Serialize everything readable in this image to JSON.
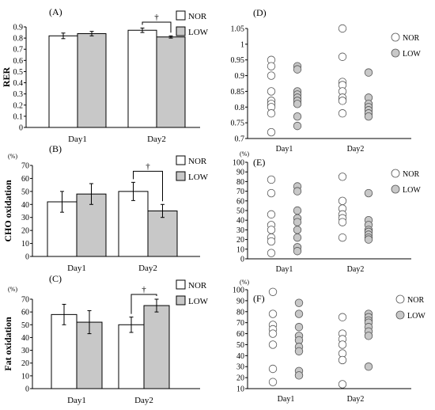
{
  "chart_data": [
    {
      "type": "bar",
      "panel": "(A)",
      "ylabel": "RER",
      "unit_label": "",
      "ylim": [
        0,
        0.9
      ],
      "yticks": [
        "0",
        "0.1",
        "0.2",
        "0.3",
        "0.4",
        "0.5",
        "0.6",
        "0.7",
        "0.8",
        "0.9"
      ],
      "categories": [
        "Day1",
        "Day2"
      ],
      "series": [
        {
          "name": "NOR",
          "values": [
            0.82,
            0.87
          ],
          "errors": [
            0.025,
            0.02
          ]
        },
        {
          "name": "LOW",
          "values": [
            0.84,
            0.81
          ],
          "errors": [
            0.02,
            0.01
          ]
        }
      ],
      "annotation": "†",
      "annotation_category": "Day2"
    },
    {
      "type": "bar",
      "panel": "(B)",
      "ylabel": "CHO oxidation",
      "unit_label": "(%)",
      "ylim": [
        0,
        70
      ],
      "yticks": [
        "0",
        "10",
        "20",
        "30",
        "40",
        "50",
        "60",
        "70"
      ],
      "categories": [
        "Day1",
        "Day2"
      ],
      "series": [
        {
          "name": "NOR",
          "values": [
            42,
            50
          ],
          "errors": [
            8,
            7
          ]
        },
        {
          "name": "LOW",
          "values": [
            48,
            35
          ],
          "errors": [
            8,
            5
          ]
        }
      ],
      "annotation": "†",
      "annotation_category": "Day2"
    },
    {
      "type": "bar",
      "panel": "(C)",
      "ylabel": "Fat oxidation",
      "unit_label": "(%)",
      "ylim": [
        0,
        70
      ],
      "yticks": [
        "0",
        "10",
        "20",
        "30",
        "40",
        "50",
        "60",
        "70"
      ],
      "categories": [
        "Day1",
        "Day2"
      ],
      "series": [
        {
          "name": "NOR",
          "values": [
            58,
            50
          ],
          "errors": [
            8,
            6
          ]
        },
        {
          "name": "LOW",
          "values": [
            52,
            65
          ],
          "errors": [
            9,
            5
          ]
        }
      ],
      "annotation": "†",
      "annotation_category": "Day2"
    },
    {
      "type": "scatter",
      "panel": "(D)",
      "unit_label": "",
      "ylim": [
        0.7,
        1.05
      ],
      "yticks": [
        "0.7",
        "0.75",
        "0.8",
        "0.85",
        "0.9",
        "0.95",
        "1",
        "1.05"
      ],
      "categories": [
        "Day1",
        "Day2"
      ],
      "series": [
        {
          "name": "NOR",
          "groups": [
            [
              0.95,
              0.93,
              0.9,
              0.85,
              0.82,
              0.81,
              0.8,
              0.78,
              0.72
            ],
            [
              1.05,
              0.96,
              0.88,
              0.87,
              0.85,
              0.83,
              0.82,
              0.78
            ]
          ]
        },
        {
          "name": "LOW",
          "groups": [
            [
              0.93,
              0.92,
              0.85,
              0.84,
              0.83,
              0.82,
              0.81,
              0.77,
              0.74
            ],
            [
              0.91,
              0.83,
              0.81,
              0.8,
              0.79,
              0.78,
              0.77
            ]
          ]
        }
      ]
    },
    {
      "type": "scatter",
      "panel": "(E)",
      "unit_label": "(%)",
      "ylim": [
        0,
        100
      ],
      "yticks": [
        "0",
        "10",
        "20",
        "30",
        "40",
        "50",
        "60",
        "70",
        "80",
        "90",
        "100"
      ],
      "categories": [
        "Day1",
        "Day2"
      ],
      "series": [
        {
          "name": "NOR",
          "groups": [
            [
              82,
              68,
              46,
              35,
              30,
              22,
              18,
              6
            ],
            [
              85,
              60,
              52,
              46,
              42,
              38,
              22
            ]
          ]
        },
        {
          "name": "LOW",
          "groups": [
            [
              75,
              70,
              50,
              42,
              38,
              30,
              22,
              12,
              8
            ],
            [
              68,
              40,
              35,
              30,
              28,
              25,
              22,
              20
            ]
          ]
        }
      ]
    },
    {
      "type": "scatter",
      "panel": "(F)",
      "unit_label": "(%)",
      "ylim": [
        10,
        100
      ],
      "yticks": [
        "10",
        "20",
        "30",
        "40",
        "50",
        "60",
        "70",
        "80",
        "90",
        "100"
      ],
      "categories": [
        "Day1",
        "Day2"
      ],
      "series": [
        {
          "name": "NOR",
          "groups": [
            [
              98,
              78,
              68,
              64,
              60,
              50,
              28,
              16
            ],
            [
              75,
              60,
              55,
              50,
              42,
              36,
              14
            ]
          ]
        },
        {
          "name": "LOW",
          "groups": [
            [
              88,
              78,
              66,
              58,
              54,
              48,
              44,
              26,
              22
            ],
            [
              78,
              75,
              72,
              70,
              66,
              62,
              58,
              30
            ]
          ]
        }
      ]
    }
  ],
  "colors": {
    "NOR": "#ffffff",
    "LOW": "#c8c8c8",
    "axis": "#000000",
    "marker_edge": "#555555"
  }
}
